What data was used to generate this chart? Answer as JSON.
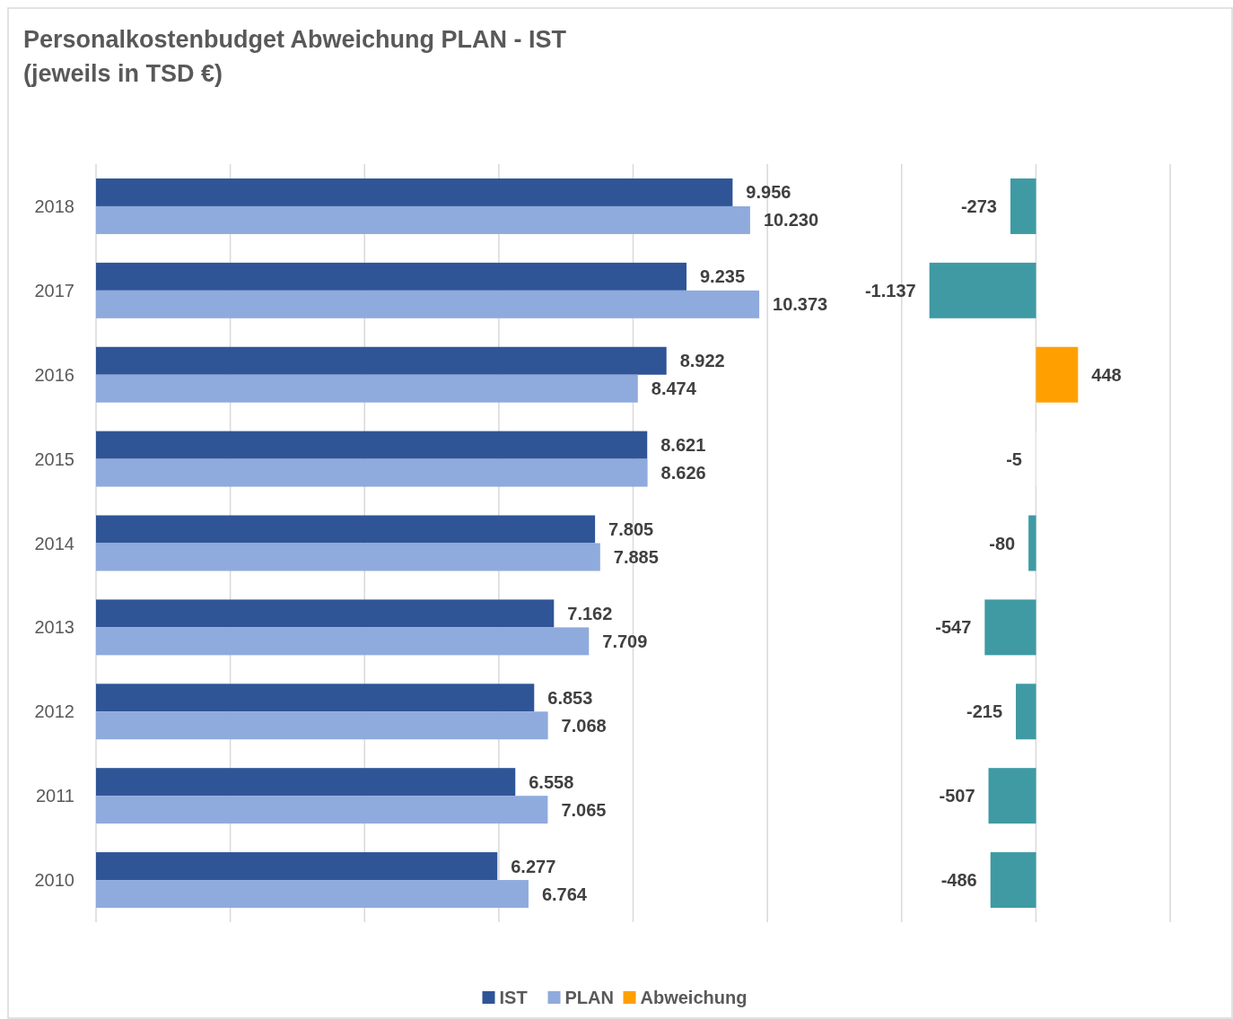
{
  "chart_data": [
    {
      "type": "bar",
      "orientation": "horizontal",
      "title": "Personalkostenbudget Abweichung PLAN - IST\n(jeweils in TSD €)",
      "categories": [
        "2018",
        "2017",
        "2016",
        "2015",
        "2014",
        "2013",
        "2012",
        "2011",
        "2010"
      ],
      "series": [
        {
          "name": "IST",
          "color": "#2f5597",
          "values": [
            9956,
            9235,
            8922,
            8621,
            7805,
            7162,
            6853,
            6558,
            6277
          ],
          "value_labels": [
            "9.956",
            "9.235",
            "8.922",
            "8.621",
            "7.805",
            "7.162",
            "6.853",
            "6.558",
            "6.277"
          ]
        },
        {
          "name": "PLAN",
          "color": "#8faadc",
          "values": [
            10230,
            10373,
            8474,
            8626,
            7885,
            7709,
            7068,
            7065,
            6764
          ],
          "value_labels": [
            "10.230",
            "10.373",
            "8.474",
            "8.626",
            "7.885",
            "7.709",
            "7.068",
            "7.065",
            "6.764"
          ]
        }
      ],
      "xlim": [
        0,
        16800
      ],
      "xticks": [
        {
          "value": 0,
          "label": null
        },
        {
          "value": 2100,
          "label": null
        },
        {
          "value": 4200,
          "label": null
        },
        {
          "value": 6300,
          "label": null
        },
        {
          "value": 8400,
          "label": null
        },
        {
          "value": 10500,
          "label": null
        },
        {
          "value": 12600,
          "label": null
        },
        {
          "value": 14700,
          "label": null
        },
        {
          "value": 16800,
          "label": null
        }
      ],
      "grid": "x",
      "tick_labels": "y",
      "legend": "bottom"
    },
    {
      "type": "bar",
      "orientation": "horizontal",
      "categories": [
        "2018",
        "2017",
        "2016",
        "2015",
        "2014",
        "2013",
        "2012",
        "2011",
        "2010"
      ],
      "series": [
        {
          "name": "Abweichung",
          "color": "#ffa000",
          "colors": [
            "#3f9aa3",
            "#3f9aa3",
            "#ffa000",
            "#f2f2f2",
            "#3f9aa3",
            "#3f9aa3",
            "#3f9aa3",
            "#3f9aa3",
            "#3f9aa3"
          ],
          "values": [
            -273,
            -1137,
            448,
            -5,
            -80,
            -547,
            -215,
            -507,
            -486
          ],
          "value_labels": [
            "-273",
            "-1.137",
            "448",
            "-5",
            "-80",
            "-547",
            "-215",
            "-507",
            "-486"
          ]
        }
      ],
      "tick_labels": false
    }
  ]
}
